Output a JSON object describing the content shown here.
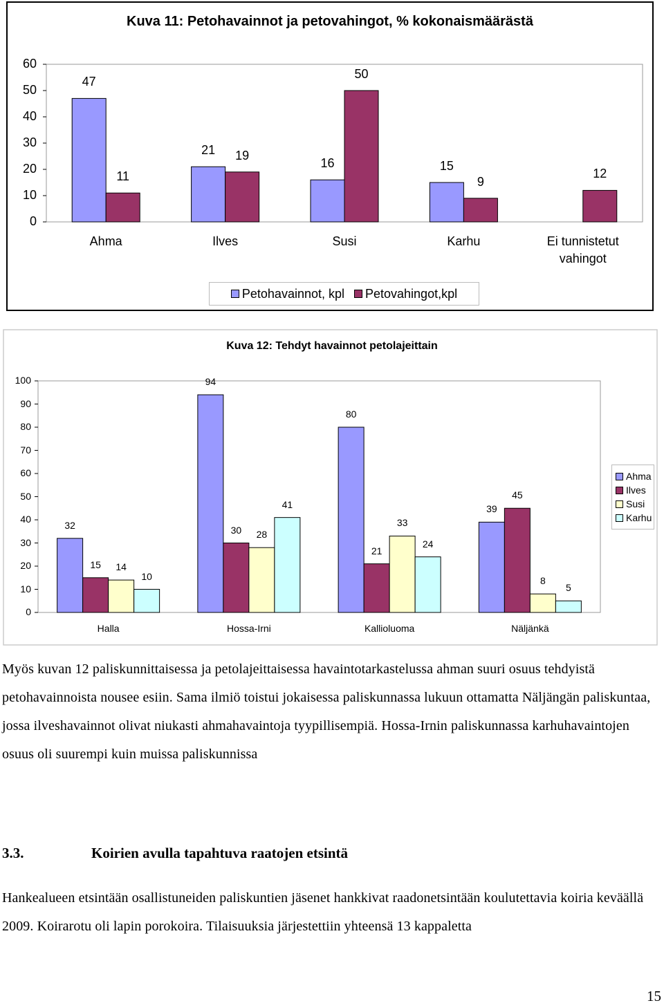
{
  "chart_data": [
    {
      "type": "bar",
      "title": "Kuva 11: Petohavainnot ja petovahingot, % kokonaismäärästä",
      "categories": [
        "Ahma",
        "Ilves",
        "Susi",
        "Karhu",
        "Ei tunnistetut vahingot"
      ],
      "series": [
        {
          "name": "Petohavainnot, kpl",
          "color": "#9999ff",
          "values": [
            47,
            21,
            16,
            15,
            null
          ]
        },
        {
          "name": "Petovahingot,kpl",
          "color": "#993366",
          "values": [
            11,
            19,
            50,
            9,
            12
          ]
        }
      ],
      "ylim": [
        0,
        60
      ],
      "yticks": [
        0,
        10,
        20,
        30,
        40,
        50,
        60
      ],
      "grid": false,
      "legend": "bottom"
    },
    {
      "type": "bar",
      "title": "Kuva 12: Tehdyt havainnot petolajeittain",
      "categories": [
        "Halla",
        "Hossa-Irni",
        "Kallioluoma",
        "Näljänkä"
      ],
      "series": [
        {
          "name": "Ahma",
          "color": "#9999ff",
          "values": [
            32,
            94,
            80,
            39
          ]
        },
        {
          "name": "Ilves",
          "color": "#993366",
          "values": [
            15,
            30,
            21,
            45
          ]
        },
        {
          "name": "Susi",
          "color": "#ffffcc",
          "values": [
            14,
            28,
            33,
            8
          ]
        },
        {
          "name": "Karhu",
          "color": "#ccffff",
          "values": [
            10,
            41,
            24,
            5
          ]
        }
      ],
      "ylim": [
        0,
        100
      ],
      "yticks": [
        0,
        10,
        20,
        30,
        40,
        50,
        60,
        70,
        80,
        90,
        100
      ],
      "grid": false,
      "legend": "right"
    }
  ],
  "body": {
    "paragraph_1": "Myös kuvan 12 paliskunnittaisessa ja petolajeittaisessa havaintotarkastelussa ahman suuri osuus tehdyistä petohavainnoista nousee esiin. Sama ilmiö toistui jokaisessa paliskunnassa lukuun ottamatta Näljängän paliskuntaa, jossa ilveshavainnot olivat niukasti ahmahavaintoja tyypillisempiä. Hossa-Irnin paliskunnassa karhuhavaintojen osuus oli suurempi kuin muissa paliskunnissa",
    "section": {
      "number": "3.3.",
      "title": "Koirien avulla tapahtuva raatojen etsintä"
    },
    "paragraph_2": "Hankealueen etsintään osallistuneiden paliskuntien jäsenet hankkivat raadonetsintään koulutettavia koiria keväällä 2009. Koirarotu oli lapin porokoira. Tilaisuuksia järjestettiin yhteensä 13 kappaletta",
    "page_number": 15
  }
}
